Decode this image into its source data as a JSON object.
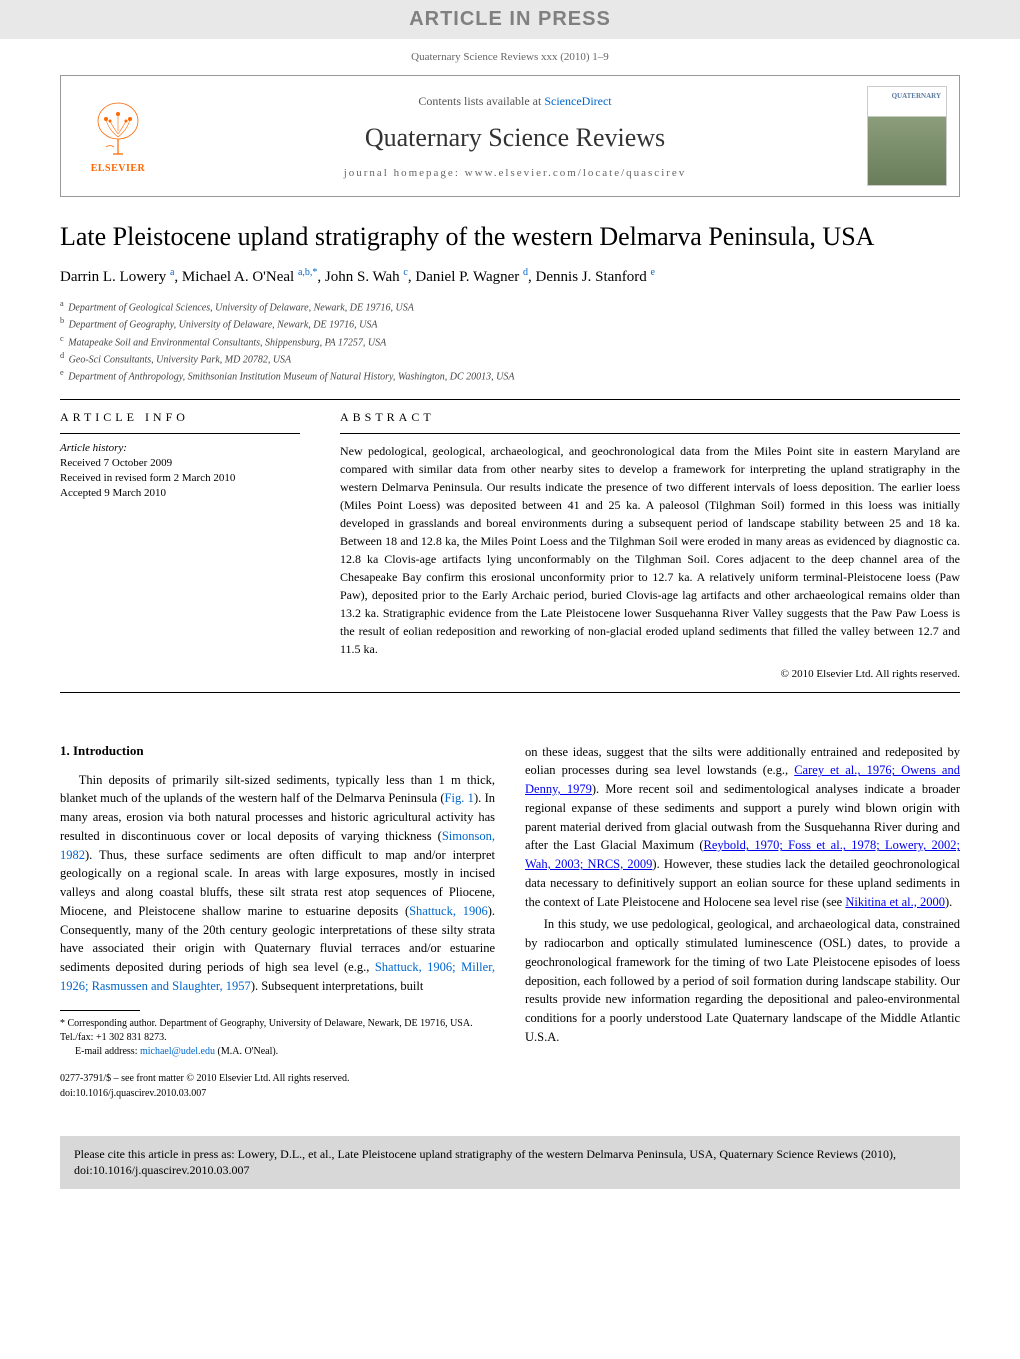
{
  "watermark": "ARTICLE IN PRESS",
  "journal_meta": "Quaternary Science Reviews xxx (2010) 1–9",
  "header": {
    "contents_prefix": "Contents lists available at ",
    "contents_link": "ScienceDirect",
    "journal_name": "Quaternary Science Reviews",
    "homepage_prefix": "journal homepage: ",
    "homepage_url": "www.elsevier.com/locate/quascirev",
    "elsevier_label": "ELSEVIER",
    "cover_label": "QUATERNARY"
  },
  "article": {
    "title": "Late Pleistocene upland stratigraphy of the western Delmarva Peninsula, USA",
    "authors_html": "Darrin L. Lowery <sup>a</sup>, Michael A. O'Neal <sup>a,b,*</sup>, John S. Wah <sup>c</sup>, Daniel P. Wagner <sup>d</sup>, Dennis J. Stanford <sup>e</sup>",
    "affiliations": [
      {
        "sup": "a",
        "text": "Department of Geological Sciences, University of Delaware, Newark, DE 19716, USA"
      },
      {
        "sup": "b",
        "text": "Department of Geography, University of Delaware, Newark, DE 19716, USA"
      },
      {
        "sup": "c",
        "text": "Matapeake Soil and Environmental Consultants, Shippensburg, PA 17257, USA"
      },
      {
        "sup": "d",
        "text": "Geo-Sci Consultants, University Park, MD 20782, USA"
      },
      {
        "sup": "e",
        "text": "Department of Anthropology, Smithsonian Institution Museum of Natural History, Washington, DC 20013, USA"
      }
    ]
  },
  "article_info": {
    "heading": "ARTICLE INFO",
    "history_label": "Article history:",
    "received": "Received 7 October 2009",
    "revised": "Received in revised form 2 March 2010",
    "accepted": "Accepted 9 March 2010"
  },
  "abstract": {
    "heading": "ABSTRACT",
    "text": "New pedological, geological, archaeological, and geochronological data from the Miles Point site in eastern Maryland are compared with similar data from other nearby sites to develop a framework for interpreting the upland stratigraphy in the western Delmarva Peninsula. Our results indicate the presence of two different intervals of loess deposition. The earlier loess (Miles Point Loess) was deposited between 41 and 25 ka. A paleosol (Tilghman Soil) formed in this loess was initially developed in grasslands and boreal environments during a subsequent period of landscape stability between 25 and 18 ka. Between 18 and 12.8 ka, the Miles Point Loess and the Tilghman Soil were eroded in many areas as evidenced by diagnostic ca. 12.8 ka Clovis-age artifacts lying unconformably on the Tilghman Soil. Cores adjacent to the deep channel area of the Chesapeake Bay confirm this erosional unconformity prior to 12.7 ka. A relatively uniform terminal-Pleistocene loess (Paw Paw), deposited prior to the Early Archaic period, buried Clovis-age lag artifacts and other archaeological remains older than 13.2 ka. Stratigraphic evidence from the Late Pleistocene lower Susquehanna River Valley suggests that the Paw Paw Loess is the result of eolian redeposition and reworking of non-glacial eroded upland sediments that filled the valley between 12.7 and 11.5 ka.",
    "copyright": "© 2010 Elsevier Ltd. All rights reserved."
  },
  "intro": {
    "heading": "1. Introduction",
    "para1_prefix": "Thin deposits of primarily silt-sized sediments, typically less than 1 m thick, blanket much of the uplands of the western half of the Delmarva Peninsula (",
    "para1_link1": "Fig. 1",
    "para1_mid1": "). In many areas, erosion via both natural processes and historic agricultural activity has resulted in discontinuous cover or local deposits of varying thickness (",
    "para1_link2": "Simonson, 1982",
    "para1_mid2": "). Thus, these surface sediments are often difficult to map and/or interpret geologically on a regional scale. In areas with large exposures, mostly in incised valleys and along coastal bluffs, these silt strata rest atop sequences of Pliocene, Miocene, and Pleistocene shallow marine to estuarine deposits (",
    "para1_link3": "Shattuck, 1906",
    "para1_mid3": "). Consequently, many of the 20th century geologic interpretations of these silty strata have associated their origin with Quaternary fluvial terraces and/or estuarine sediments deposited during periods of high sea level (e.g., ",
    "para1_link4": "Shattuck, 1906; Miller, 1926; Rasmussen and Slaughter, 1957",
    "para1_mid4": "). Subsequent interpretations, built",
    "para2_prefix": "on these ideas, suggest that the silts were additionally entrained and redeposited by eolian processes during sea level lowstands (e.g., ",
    "para2_link1": "Carey et al., 1976; Owens and Denny, 1979",
    "para2_mid1": "). More recent soil and sedimentological analyses indicate a broader regional expanse of these sediments and support a purely wind blown origin with parent material derived from glacial outwash from the Susquehanna River during and after the Last Glacial Maximum (",
    "para2_link2": "Reybold, 1970; Foss et al., 1978; Lowery, 2002; Wah, 2003; NRCS, 2009",
    "para2_mid2": "). However, these studies lack the detailed geochronological data necessary to definitively support an eolian source for these upland sediments in the context of Late Pleistocene and Holocene sea level rise (see ",
    "para2_link3": "Nikitina et al., 2000",
    "para2_mid3": ").",
    "para3": "In this study, we use pedological, geological, and archaeological data, constrained by radiocarbon and optically stimulated luminescence (OSL) dates, to provide a geochronological framework for the timing of two Late Pleistocene episodes of loess deposition, each followed by a period of soil formation during landscape stability. Our results provide new information regarding the depositional and paleo-environmental conditions for a poorly understood Late Quaternary landscape of the Middle Atlantic U.S.A."
  },
  "footnotes": {
    "corresponding": "* Corresponding author. Department of Geography, University of Delaware, Newark, DE 19716, USA. Tel./fax: +1 302 831 8273.",
    "email_label": "E-mail address: ",
    "email": "michael@udel.edu",
    "email_suffix": " (M.A. O'Neal).",
    "front_matter": "0277-3791/$ – see front matter © 2010 Elsevier Ltd. All rights reserved.",
    "doi": "doi:10.1016/j.quascirev.2010.03.007"
  },
  "citation_box": "Please cite this article in press as: Lowery, D.L., et al., Late Pleistocene upland stratigraphy of the western Delmarva Peninsula, USA, Quaternary Science Reviews (2010), doi:10.1016/j.quascirev.2010.03.007"
}
